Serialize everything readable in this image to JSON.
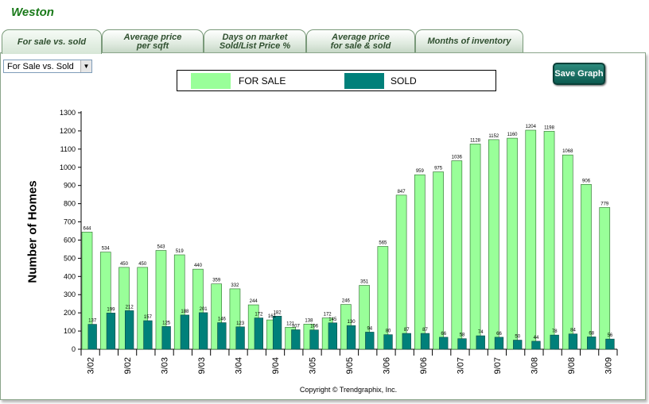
{
  "city": "Weston",
  "tabs": [
    {
      "line1": "For sale vs. sold",
      "line2": ""
    },
    {
      "line1": "Average price",
      "line2": "per sqft"
    },
    {
      "line1": "Days on market",
      "line2": "Sold/List Price %"
    },
    {
      "line1": "Average price",
      "line2": "for sale & sold"
    },
    {
      "line1": "Months of inventory",
      "line2": ""
    }
  ],
  "select": {
    "value": "For Sale vs. Sold"
  },
  "save_button": "Save Graph",
  "copyright": "Copyright © Trendgraphix, Inc.",
  "colors": {
    "for_sale": "#99ff99",
    "sold": "#00807a",
    "tab_text": "#2f4f2f",
    "title": "#1a7a1a"
  },
  "chart_data": {
    "type": "bar",
    "ylabel": "Number of Homes",
    "ylim": [
      0,
      1300
    ],
    "yticks": [
      0,
      100,
      200,
      300,
      400,
      500,
      600,
      700,
      800,
      900,
      1000,
      1100,
      1200,
      1300
    ],
    "xtick_labels": [
      "3/02",
      "9/02",
      "3/03",
      "9/03",
      "3/04",
      "9/04",
      "3/05",
      "9/05",
      "3/06",
      "9/06",
      "3/07",
      "9/07",
      "3/08",
      "9/08",
      "3/09"
    ],
    "legend": [
      "FOR SALE",
      "SOLD"
    ],
    "series": [
      {
        "name": "FOR SALE",
        "values": [
          644,
          534,
          450,
          450,
          543,
          519,
          440,
          359,
          332,
          244,
          161,
          121,
          138,
          172,
          246,
          351,
          565,
          847,
          959,
          975,
          1036,
          1128,
          1152,
          1160,
          1204,
          1198,
          1068,
          906,
          779
        ]
      },
      {
        "name": "SOLD",
        "values": [
          137,
          199,
          212,
          157,
          125,
          188,
          201,
          146,
          123,
          172,
          182,
          107,
          106,
          145,
          130,
          94,
          80,
          87,
          87,
          66,
          58,
          74,
          66,
          50,
          44,
          78,
          84,
          68,
          56
        ]
      }
    ]
  }
}
